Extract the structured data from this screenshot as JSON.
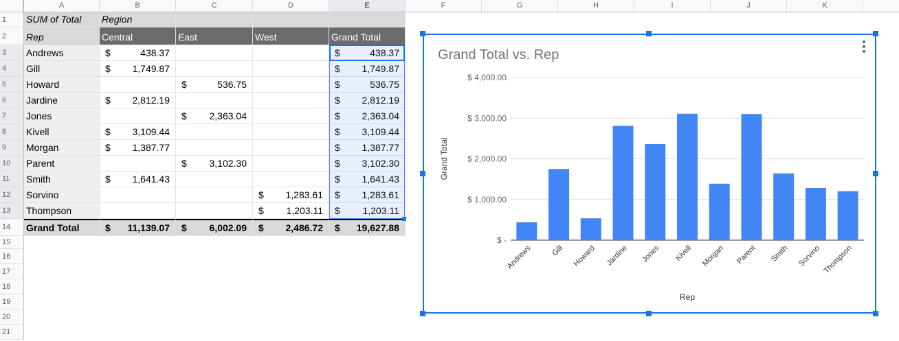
{
  "columns": [
    "A",
    "B",
    "C",
    "D",
    "E",
    "F",
    "G",
    "H",
    "I",
    "J",
    "K"
  ],
  "rows": [
    "1",
    "2",
    "3",
    "4",
    "5",
    "6",
    "7",
    "8",
    "9",
    "10",
    "11",
    "12",
    "13",
    "14",
    "15",
    "16",
    "17",
    "18",
    "19",
    "20",
    "21"
  ],
  "pivot": {
    "label_sum": "SUM of Total",
    "label_region": "Region",
    "label_rep": "Rep",
    "regions": [
      "Central",
      "East",
      "West"
    ],
    "grand_total_col": "Grand Total",
    "currency": "$",
    "reps": [
      {
        "name": "Andrews",
        "central": "438.37",
        "east": "",
        "west": "",
        "total": "438.37"
      },
      {
        "name": "Gill",
        "central": "1,749.87",
        "east": "",
        "west": "",
        "total": "1,749.87"
      },
      {
        "name": "Howard",
        "central": "",
        "east": "536.75",
        "west": "",
        "total": "536.75"
      },
      {
        "name": "Jardine",
        "central": "2,812.19",
        "east": "",
        "west": "",
        "total": "2,812.19"
      },
      {
        "name": "Jones",
        "central": "",
        "east": "2,363.04",
        "west": "",
        "total": "2,363.04"
      },
      {
        "name": "Kivell",
        "central": "3,109.44",
        "east": "",
        "west": "",
        "total": "3,109.44"
      },
      {
        "name": "Morgan",
        "central": "1,387.77",
        "east": "",
        "west": "",
        "total": "1,387.77"
      },
      {
        "name": "Parent",
        "central": "",
        "east": "3,102.30",
        "west": "",
        "total": "3,102.30"
      },
      {
        "name": "Smith",
        "central": "1,641.43",
        "east": "",
        "west": "",
        "total": "1,641.43"
      },
      {
        "name": "Sorvino",
        "central": "",
        "east": "",
        "west": "1,283.61",
        "total": "1,283.61"
      },
      {
        "name": "Thompson",
        "central": "",
        "east": "",
        "west": "1,203.11",
        "total": "1,203.11"
      }
    ],
    "grand_total_row": {
      "label": "Grand Total",
      "central": "11,139.07",
      "east": "6,002.09",
      "west": "2,486.72",
      "total": "19,627.88"
    }
  },
  "chart_data": {
    "type": "bar",
    "title": "Grand Total vs. Rep",
    "xlabel": "Rep",
    "ylabel": "Grand Total",
    "categories": [
      "Andrews",
      "Gill",
      "Howard",
      "Jardine",
      "Jones",
      "Kivell",
      "Morgan",
      "Parent",
      "Smith",
      "Sorvino",
      "Thompson"
    ],
    "values": [
      438.37,
      1749.87,
      536.75,
      2812.19,
      2363.04,
      3109.44,
      1387.77,
      3102.3,
      1641.43,
      1283.61,
      1203.11
    ],
    "ylim": [
      0,
      4000
    ],
    "yticks": [
      0,
      1000,
      2000,
      3000,
      4000
    ],
    "ytick_labels": [
      "$ -",
      "$ 1,000.00",
      "$ 2,000.00",
      "$ 3,000.00",
      "$ 4,000.00"
    ],
    "grid": true,
    "legend": "none",
    "bar_color": "#4285f4"
  },
  "colors": {
    "selection": "#1a73e8",
    "header_dark": "#6b6b6b",
    "header_light": "#d9d9d9"
  }
}
